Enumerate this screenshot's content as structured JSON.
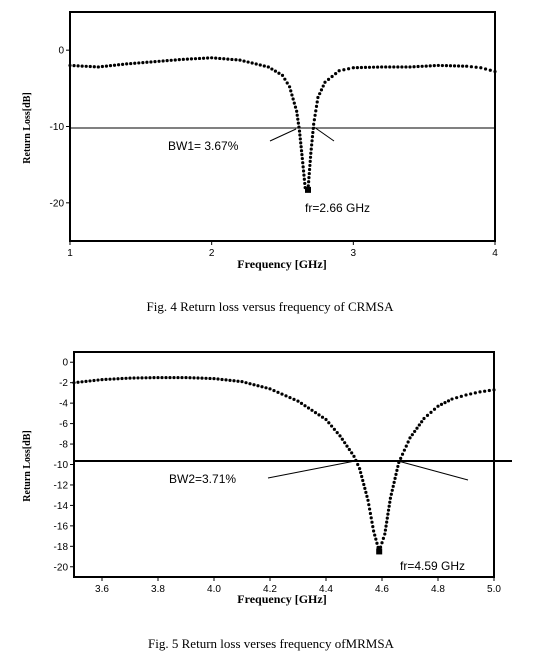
{
  "chart_data": [
    {
      "type": "scatter",
      "xlabel": "Frequency [GHz]",
      "ylabel": "Return Loss[dB]",
      "xlim": [
        1,
        4
      ],
      "ylim": [
        -25,
        5
      ],
      "xticks": [
        "1",
        "2",
        "3",
        "4"
      ],
      "yticks": [
        "0",
        "-10",
        "-20"
      ],
      "reference_line": -10,
      "annotations": [
        "BW1= 3.67%",
        "fr=2.66 GHz"
      ],
      "caption": "Fig. 4 Return loss versus frequency of CRMSA",
      "x": [
        1.0,
        1.2,
        1.4,
        1.6,
        1.8,
        2.0,
        2.2,
        2.4,
        2.5,
        2.55,
        2.6,
        2.62,
        2.64,
        2.66,
        2.68,
        2.7,
        2.72,
        2.75,
        2.8,
        2.9,
        3.0,
        3.2,
        3.4,
        3.6,
        3.8,
        3.9,
        4.0
      ],
      "y": [
        -2.0,
        -2.2,
        -1.8,
        -1.5,
        -1.2,
        -1.0,
        -1.3,
        -2.2,
        -3.3,
        -4.8,
        -8.0,
        -10.6,
        -14.2,
        -18.0,
        -18.3,
        -13.5,
        -9.7,
        -6.2,
        -4.2,
        -2.7,
        -2.3,
        -2.2,
        -2.2,
        -2.0,
        -2.1,
        -2.3,
        -2.8
      ]
    },
    {
      "type": "scatter",
      "xlabel": "Frequency  [GHz]",
      "ylabel": "Return Loss[dB]",
      "xlim": [
        3.5,
        5.0
      ],
      "ylim": [
        -21,
        1
      ],
      "xticks": [
        "3.6",
        "3.8",
        "4.0",
        "4.2",
        "4.4",
        "4.6",
        "4.8",
        "5.0"
      ],
      "yticks": [
        "0",
        "-2",
        "-4",
        "-6",
        "-8",
        "-10",
        "-12",
        "-14",
        "-16",
        "-18",
        "-20"
      ],
      "reference_line": -9.6,
      "annotations": [
        "BW2=3.71%",
        "fr=4.59 GHz"
      ],
      "caption": "Fig. 5 Return loss verses frequency ofMRMSA",
      "x": [
        3.5,
        3.6,
        3.7,
        3.8,
        3.9,
        4.0,
        4.1,
        4.2,
        4.3,
        4.4,
        4.45,
        4.5,
        4.52,
        4.55,
        4.57,
        4.59,
        4.61,
        4.63,
        4.66,
        4.7,
        4.75,
        4.8,
        4.85,
        4.9,
        4.95,
        5.0
      ],
      "y": [
        -2.0,
        -1.7,
        -1.55,
        -1.5,
        -1.5,
        -1.6,
        -1.9,
        -2.6,
        -3.8,
        -5.6,
        -7.2,
        -9.2,
        -10.4,
        -13.5,
        -16.5,
        -18.5,
        -16.8,
        -13.3,
        -9.8,
        -7.4,
        -5.5,
        -4.3,
        -3.6,
        -3.2,
        -2.9,
        -2.7
      ]
    }
  ]
}
